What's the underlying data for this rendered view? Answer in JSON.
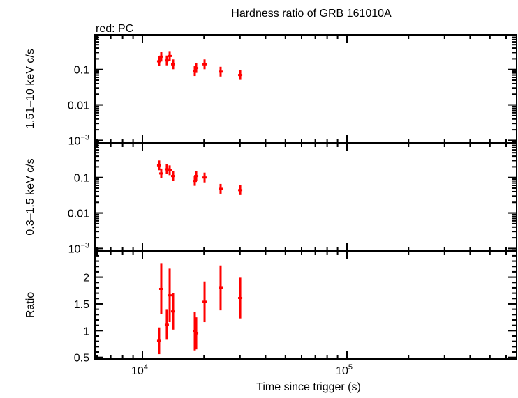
{
  "chart_data": {
    "type": "scatter",
    "title": "Hardness ratio of GRB 161010A",
    "subtitle": "red: PC",
    "xlabel": "Time since trigger (s)",
    "xscale": "log",
    "xlim": [
      5860,
      675000
    ],
    "x_tick_labels": [
      {
        "base": "10",
        "exp": "4",
        "value": 10000
      },
      {
        "base": "10",
        "exp": "5",
        "value": 100000
      }
    ],
    "series_color": "#ff0000",
    "x": [
      12070,
      12360,
      13160,
      13590,
      14130,
      18030,
      18320,
      20130,
      24110,
      30060
    ],
    "panels": [
      {
        "ylabel": "1.51–10 keV c/s",
        "yscale": "log",
        "ylim": [
          0.00085,
          0.95
        ],
        "ticks": [
          {
            "label": "0.1",
            "value": 0.1
          },
          {
            "label": "0.01",
            "value": 0.01
          },
          {
            "label": "10",
            "exp": "−3",
            "value": 0.001
          }
        ],
        "y": [
          0.17,
          0.23,
          0.18,
          0.24,
          0.14,
          0.09,
          0.11,
          0.14,
          0.087,
          0.07
        ]
      },
      {
        "ylabel": "0.3–1.5 keV c/s",
        "yscale": "log",
        "ylim": [
          0.00085,
          0.95
        ],
        "ticks": [
          {
            "label": "0.1",
            "value": 0.1
          },
          {
            "label": "0.01",
            "value": 0.01
          },
          {
            "label": "10",
            "exp": "−3",
            "value": 0.001
          }
        ],
        "y": [
          0.22,
          0.13,
          0.17,
          0.16,
          0.11,
          0.08,
          0.11,
          0.1,
          0.048,
          0.044
        ]
      },
      {
        "ylabel": "Ratio",
        "yscale": "linear",
        "ylim": [
          0.47,
          2.49
        ],
        "ticks": [
          {
            "label": "2",
            "value": 2
          },
          {
            "label": "1.5",
            "value": 1.5
          },
          {
            "label": "1",
            "value": 1
          },
          {
            "label": "0.5",
            "value": 0.5
          }
        ],
        "y": [
          0.81,
          1.78,
          1.11,
          1.66,
          1.36,
          0.99,
          0.95,
          1.54,
          1.8,
          1.61
        ],
        "yerr": [
          0.25,
          0.47,
          0.28,
          0.5,
          0.34,
          0.36,
          0.3,
          0.38,
          0.42,
          0.38
        ]
      }
    ]
  }
}
